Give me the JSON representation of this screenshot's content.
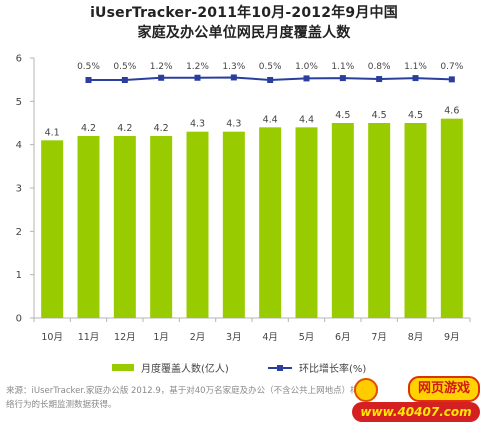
{
  "title": {
    "line1": "iUserTracker-2011年10月-2012年9月中国",
    "line2": "家庭及办公单位网民月度覆盖人数"
  },
  "chart_data": {
    "type": "bar",
    "categories": [
      "10月",
      "11月",
      "12月",
      "1月",
      "2月",
      "3月",
      "4月",
      "5月",
      "6月",
      "7月",
      "8月",
      "9月"
    ],
    "series": [
      {
        "name": "月度覆盖人数(亿人)",
        "type": "bar",
        "values": [
          4.1,
          4.2,
          4.2,
          4.2,
          4.3,
          4.3,
          4.4,
          4.4,
          4.5,
          4.5,
          4.5,
          4.6
        ],
        "labels": [
          "4.1",
          "4.2",
          "4.2",
          "4.2",
          "4.3",
          "4.3",
          "4.4",
          "4.4",
          "4.5",
          "4.5",
          "4.5",
          "4.6"
        ]
      },
      {
        "name": "环比增长率(%)",
        "type": "line",
        "values": [
          null,
          0.5,
          0.5,
          1.2,
          1.2,
          1.3,
          0.5,
          1.0,
          1.1,
          0.8,
          1.1,
          0.7
        ],
        "labels": [
          "",
          "0.5%",
          "0.5%",
          "1.2%",
          "1.2%",
          "1.3%",
          "0.5%",
          "1.0%",
          "1.1%",
          "0.8%",
          "1.1%",
          "0.7%"
        ]
      }
    ],
    "yticks": [
      "0",
      "1",
      "2",
      "3",
      "4",
      "5",
      "6"
    ],
    "ylim": [
      0,
      6
    ],
    "grid": false,
    "legend_position": "bottom",
    "colors": {
      "bar": "#99cc00",
      "line": "#2a3f9d",
      "axis": "#b4b4b4"
    }
  },
  "legend": {
    "bar_label": "月度覆盖人数(亿人)",
    "line_label": "环比增长率(%)"
  },
  "footer": {
    "line1": "来源：iUserTracker.家庭办公版 2012.9，基于对40万名家庭及办公（不含公共上网地点）样本网络行为的长期监测数据获得。",
    "line2": "络行为的长期监测数据获得。"
  },
  "logo": {
    "top_text": "网页游戏",
    "bottom_text": "www.40407.com"
  }
}
